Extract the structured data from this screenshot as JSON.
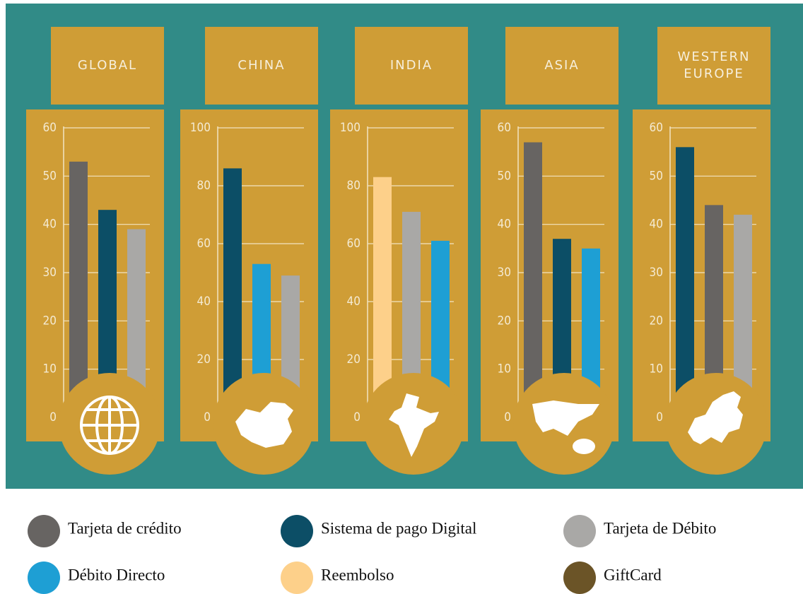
{
  "chart_data": [
    {
      "type": "bar",
      "title": "GLOBAL",
      "values": [
        53,
        43,
        39
      ],
      "colors": [
        "#676462",
        "#0c4e66",
        "#a9a8a6"
      ],
      "ylim": [
        0,
        60
      ],
      "yticks": [
        0,
        10,
        20,
        30,
        40,
        50,
        60
      ]
    },
    {
      "type": "bar",
      "title": "CHINA",
      "values": [
        86,
        53,
        49
      ],
      "colors": [
        "#0c4e66",
        "#1e9fd4",
        "#a9a8a6"
      ],
      "ylim": [
        0,
        100
      ],
      "yticks": [
        0,
        20,
        40,
        60,
        80,
        100
      ]
    },
    {
      "type": "bar",
      "title": "INDIA",
      "values": [
        83,
        71,
        61
      ],
      "colors": [
        "#fdd08a",
        "#a9a8a6",
        "#1e9fd4"
      ],
      "ylim": [
        0,
        100
      ],
      "yticks": [
        0,
        20,
        40,
        60,
        80,
        100
      ]
    },
    {
      "type": "bar",
      "title": "ASIA",
      "values": [
        57,
        37,
        35
      ],
      "colors": [
        "#676462",
        "#0c4e66",
        "#1e9fd4"
      ],
      "ylim": [
        0,
        60
      ],
      "yticks": [
        0,
        10,
        20,
        30,
        40,
        50,
        60
      ]
    },
    {
      "type": "bar",
      "title": "WESTERN EUROPE",
      "values": [
        56,
        44,
        42
      ],
      "colors": [
        "#0c4e66",
        "#676462",
        "#a9a8a6"
      ],
      "ylim": [
        0,
        60
      ],
      "yticks": [
        0,
        10,
        20,
        30,
        40,
        50,
        60
      ]
    }
  ],
  "legend": [
    {
      "name": "Tarjeta de crédito",
      "color": "#676462"
    },
    {
      "name": "Débito Directo",
      "color": "#1e9fd4"
    },
    {
      "name": "Sistema de pago Digital",
      "color": "#0c4e66"
    },
    {
      "name": "Reembolso",
      "color": "#fdd08a"
    },
    {
      "name": "Tarjeta de Débito",
      "color": "#a9a8a6"
    },
    {
      "name": "GiftCard",
      "color": "#6b5427"
    }
  ]
}
